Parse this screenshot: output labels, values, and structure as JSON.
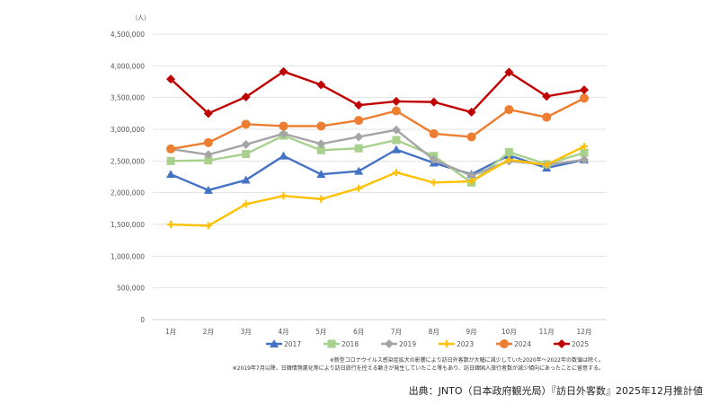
{
  "chart_data": {
    "type": "line",
    "unit_label": "（人）",
    "categories": [
      "1月",
      "2月",
      "3月",
      "4月",
      "5月",
      "6月",
      "7月",
      "8月",
      "9月",
      "10月",
      "11月",
      "12月"
    ],
    "ylim": [
      0,
      4500000
    ],
    "yticks": [
      0,
      500000,
      1000000,
      1500000,
      2000000,
      2500000,
      3000000,
      3500000,
      4000000,
      4500000
    ],
    "ytick_labels": [
      "0",
      "500,000",
      "1,000,000",
      "1,500,000",
      "2,000,000",
      "2,500,000",
      "3,000,000",
      "3,500,000",
      "4,000,000",
      "4,500,000"
    ],
    "grid": true,
    "legend_position": "bottom",
    "series": [
      {
        "name": "2017",
        "color": "#4472C4",
        "marker": "triangle",
        "values": [
          2290000,
          2040000,
          2200000,
          2580000,
          2290000,
          2340000,
          2680000,
          2470000,
          2290000,
          2590000,
          2390000,
          2520000
        ]
      },
      {
        "name": "2018",
        "color": "#A9D18E",
        "marker": "square",
        "values": [
          2500000,
          2510000,
          2610000,
          2900000,
          2670000,
          2700000,
          2830000,
          2580000,
          2160000,
          2640000,
          2450000,
          2630000
        ]
      },
      {
        "name": "2019",
        "color": "#A5A5A5",
        "marker": "diamond",
        "values": [
          2690000,
          2600000,
          2760000,
          2930000,
          2770000,
          2880000,
          2990000,
          2520000,
          2270000,
          2500000,
          2440000,
          2520000
        ]
      },
      {
        "name": "2023",
        "color": "#FFC000",
        "marker": "cross",
        "values": [
          1500000,
          1480000,
          1820000,
          1950000,
          1900000,
          2070000,
          2320000,
          2160000,
          2180000,
          2520000,
          2440000,
          2730000
        ]
      },
      {
        "name": "2024",
        "color": "#ED7D31",
        "marker": "circle",
        "values": [
          2690000,
          2790000,
          3080000,
          3050000,
          3050000,
          3140000,
          3290000,
          2930000,
          2880000,
          3310000,
          3190000,
          3490000
        ]
      },
      {
        "name": "2025",
        "color": "#C00000",
        "marker": "diamond",
        "values": [
          3790000,
          3250000,
          3510000,
          3910000,
          3700000,
          3380000,
          3440000,
          3430000,
          3270000,
          3900000,
          3520000,
          3620000
        ]
      }
    ],
    "notes": [
      "※新型コロナウイルス感染症拡大の影響により訪日外客数が大幅に減少していた2020年～2022年の数値は除く。",
      "※2019年7月以降、日韓情勢悪化等により訪日旅行を控える動きが発生していたこと等もあり、訪日韓国人旅行者数が減少傾向にあったことに留意する。"
    ],
    "source": "出典：JNTO（日本政府観光局）『訪日外客数』2025年12月推計値"
  }
}
